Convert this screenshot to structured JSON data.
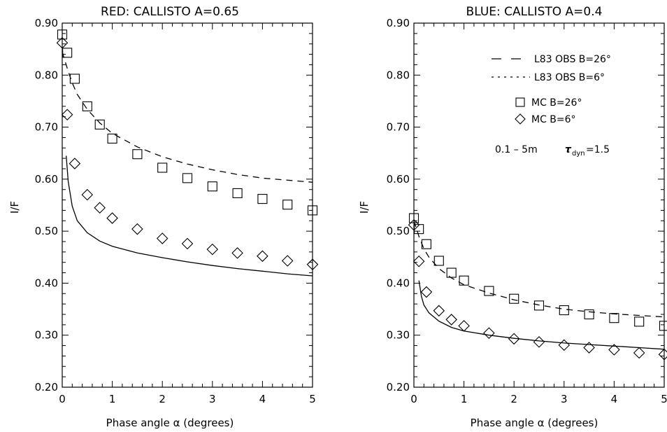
{
  "chart_data": [
    {
      "type": "scatter",
      "title": "RED:  CALLISTO  A=0.65",
      "xlabel": "Phase angle α (degrees)",
      "ylabel": "I/F",
      "xlim": [
        0,
        5
      ],
      "ylim": [
        0.2,
        0.9
      ],
      "xticks": [
        "0",
        "1",
        "2",
        "3",
        "4",
        "5"
      ],
      "yticks": [
        "0.20",
        "0.30",
        "0.40",
        "0.50",
        "0.60",
        "0.70",
        "0.80",
        "0.90"
      ],
      "grid": false,
      "series": [
        {
          "name": "MC  B=26°",
          "marker": "square",
          "x": [
            0.0,
            0.1,
            0.25,
            0.5,
            0.75,
            1.0,
            1.5,
            2.0,
            2.5,
            3.0,
            3.5,
            4.0,
            4.5,
            5.0
          ],
          "y": [
            0.878,
            0.843,
            0.793,
            0.74,
            0.705,
            0.678,
            0.648,
            0.622,
            0.602,
            0.586,
            0.573,
            0.562,
            0.551,
            0.54
          ]
        },
        {
          "name": "MC  B=6°",
          "marker": "diamond",
          "x": [
            0.0,
            0.1,
            0.25,
            0.5,
            0.75,
            1.0,
            1.5,
            2.0,
            2.5,
            3.0,
            3.5,
            4.0,
            4.5,
            5.0
          ],
          "y": [
            0.862,
            0.724,
            0.63,
            0.57,
            0.545,
            0.525,
            0.504,
            0.486,
            0.476,
            0.465,
            0.458,
            0.452,
            0.443,
            0.436
          ]
        },
        {
          "name": "L83 OBS B=26°",
          "style": "dashed",
          "x": [
            0.0,
            0.1,
            0.2,
            0.3,
            0.5,
            0.75,
            1.0,
            1.5,
            2.0,
            2.5,
            3.0,
            3.5,
            4.0,
            4.5,
            5.0
          ],
          "y": [
            0.845,
            0.813,
            0.785,
            0.763,
            0.734,
            0.708,
            0.688,
            0.662,
            0.643,
            0.629,
            0.618,
            0.609,
            0.602,
            0.598,
            0.594
          ]
        },
        {
          "name": "solid",
          "style": "solid",
          "x": [
            0.08,
            0.12,
            0.2,
            0.3,
            0.5,
            0.75,
            1.0,
            1.5,
            2.0,
            2.5,
            3.0,
            3.5,
            4.0,
            4.5,
            5.0
          ],
          "y": [
            0.645,
            0.595,
            0.548,
            0.52,
            0.497,
            0.481,
            0.471,
            0.458,
            0.449,
            0.441,
            0.434,
            0.428,
            0.423,
            0.418,
            0.414
          ]
        }
      ]
    },
    {
      "type": "scatter",
      "title": "BLUE:  CALLISTO  A=0.4",
      "xlabel": "Phase angle α (degrees)",
      "ylabel": "I/F",
      "xlim": [
        0,
        5
      ],
      "ylim": [
        0.2,
        0.9
      ],
      "xticks": [
        "0",
        "1",
        "2",
        "3",
        "4",
        "5"
      ],
      "yticks": [
        "0.20",
        "0.30",
        "0.40",
        "0.50",
        "0.60",
        "0.70",
        "0.80",
        "0.90"
      ],
      "grid": false,
      "legend_position": "top-right",
      "legend": [
        {
          "label": "L83 OBS B=26°",
          "style": "dashed"
        },
        {
          "label": "L83 OBS B=6°",
          "style": "dotted"
        },
        {
          "label": "MC   B=26°",
          "marker": "square"
        },
        {
          "label": "MC   B=6°",
          "marker": "diamond"
        }
      ],
      "annotation": {
        "range": "0.1 – 5m",
        "tau": "τ",
        "tau_sub": "dyn",
        "tau_value": "=1.5"
      },
      "series": [
        {
          "name": "MC  B=26°",
          "marker": "square",
          "x": [
            0.0,
            0.1,
            0.25,
            0.5,
            0.75,
            1.0,
            1.5,
            2.0,
            2.5,
            3.0,
            3.5,
            4.0,
            4.5,
            5.0
          ],
          "y": [
            0.525,
            0.504,
            0.475,
            0.443,
            0.42,
            0.405,
            0.385,
            0.37,
            0.357,
            0.348,
            0.34,
            0.333,
            0.326,
            0.318
          ]
        },
        {
          "name": "MC  B=6°",
          "marker": "diamond",
          "x": [
            0.0,
            0.1,
            0.25,
            0.5,
            0.75,
            1.0,
            1.5,
            2.0,
            2.5,
            3.0,
            3.5,
            4.0,
            4.5,
            5.0
          ],
          "y": [
            0.512,
            0.442,
            0.383,
            0.347,
            0.33,
            0.318,
            0.304,
            0.293,
            0.287,
            0.281,
            0.276,
            0.272,
            0.266,
            0.263
          ]
        },
        {
          "name": "L83 OBS B=26°",
          "style": "dashed",
          "x": [
            0.0,
            0.1,
            0.2,
            0.3,
            0.5,
            0.75,
            1.0,
            1.5,
            2.0,
            2.5,
            3.0,
            3.5,
            4.0,
            4.5,
            5.0
          ],
          "y": [
            0.52,
            0.49,
            0.466,
            0.45,
            0.428,
            0.41,
            0.397,
            0.381,
            0.368,
            0.358,
            0.35,
            0.345,
            0.341,
            0.338,
            0.335
          ]
        },
        {
          "name": "solid",
          "style": "solid",
          "x": [
            0.1,
            0.15,
            0.2,
            0.3,
            0.5,
            0.75,
            1.0,
            1.5,
            2.0,
            2.5,
            3.0,
            3.5,
            4.0,
            4.5,
            5.0
          ],
          "y": [
            0.405,
            0.375,
            0.358,
            0.343,
            0.327,
            0.315,
            0.308,
            0.3,
            0.294,
            0.289,
            0.285,
            0.282,
            0.279,
            0.276,
            0.273
          ]
        }
      ]
    }
  ]
}
